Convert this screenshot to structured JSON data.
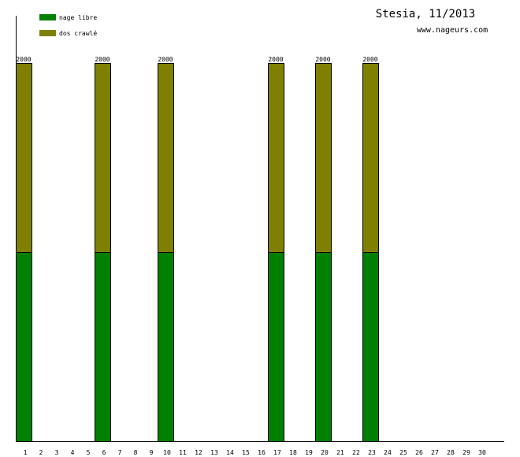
{
  "chart_data": {
    "type": "bar",
    "stacked": true,
    "title": "Stesia, 11/2013",
    "subtitle": "www.nageurs.com",
    "categories": [
      "1",
      "2",
      "3",
      "4",
      "5",
      "6",
      "7",
      "8",
      "9",
      "10",
      "11",
      "12",
      "13",
      "14",
      "15",
      "16",
      "17",
      "18",
      "19",
      "20",
      "21",
      "22",
      "23",
      "24",
      "25",
      "26",
      "27",
      "28",
      "29",
      "30"
    ],
    "series": [
      {
        "name": "nage libre",
        "color": "#008000",
        "values": [
          1000,
          0,
          0,
          0,
          0,
          1000,
          0,
          0,
          0,
          1000,
          0,
          0,
          0,
          0,
          0,
          0,
          1000,
          0,
          0,
          1000,
          0,
          0,
          1000,
          0,
          0,
          0,
          0,
          0,
          0,
          0
        ]
      },
      {
        "name": "dos crawlé",
        "color": "#808000",
        "values": [
          1000,
          0,
          0,
          0,
          0,
          1000,
          0,
          0,
          0,
          1000,
          0,
          0,
          0,
          0,
          0,
          0,
          1000,
          0,
          0,
          1000,
          0,
          0,
          1000,
          0,
          0,
          0,
          0,
          0,
          0,
          0
        ]
      }
    ],
    "totals": [
      2000,
      0,
      0,
      0,
      0,
      2000,
      0,
      0,
      0,
      2000,
      0,
      0,
      0,
      0,
      0,
      0,
      2000,
      0,
      0,
      2000,
      0,
      0,
      2000,
      0,
      0,
      0,
      0,
      0,
      0,
      0
    ],
    "ylim": [
      0,
      2000
    ],
    "grid": false,
    "legend": "top-left"
  }
}
